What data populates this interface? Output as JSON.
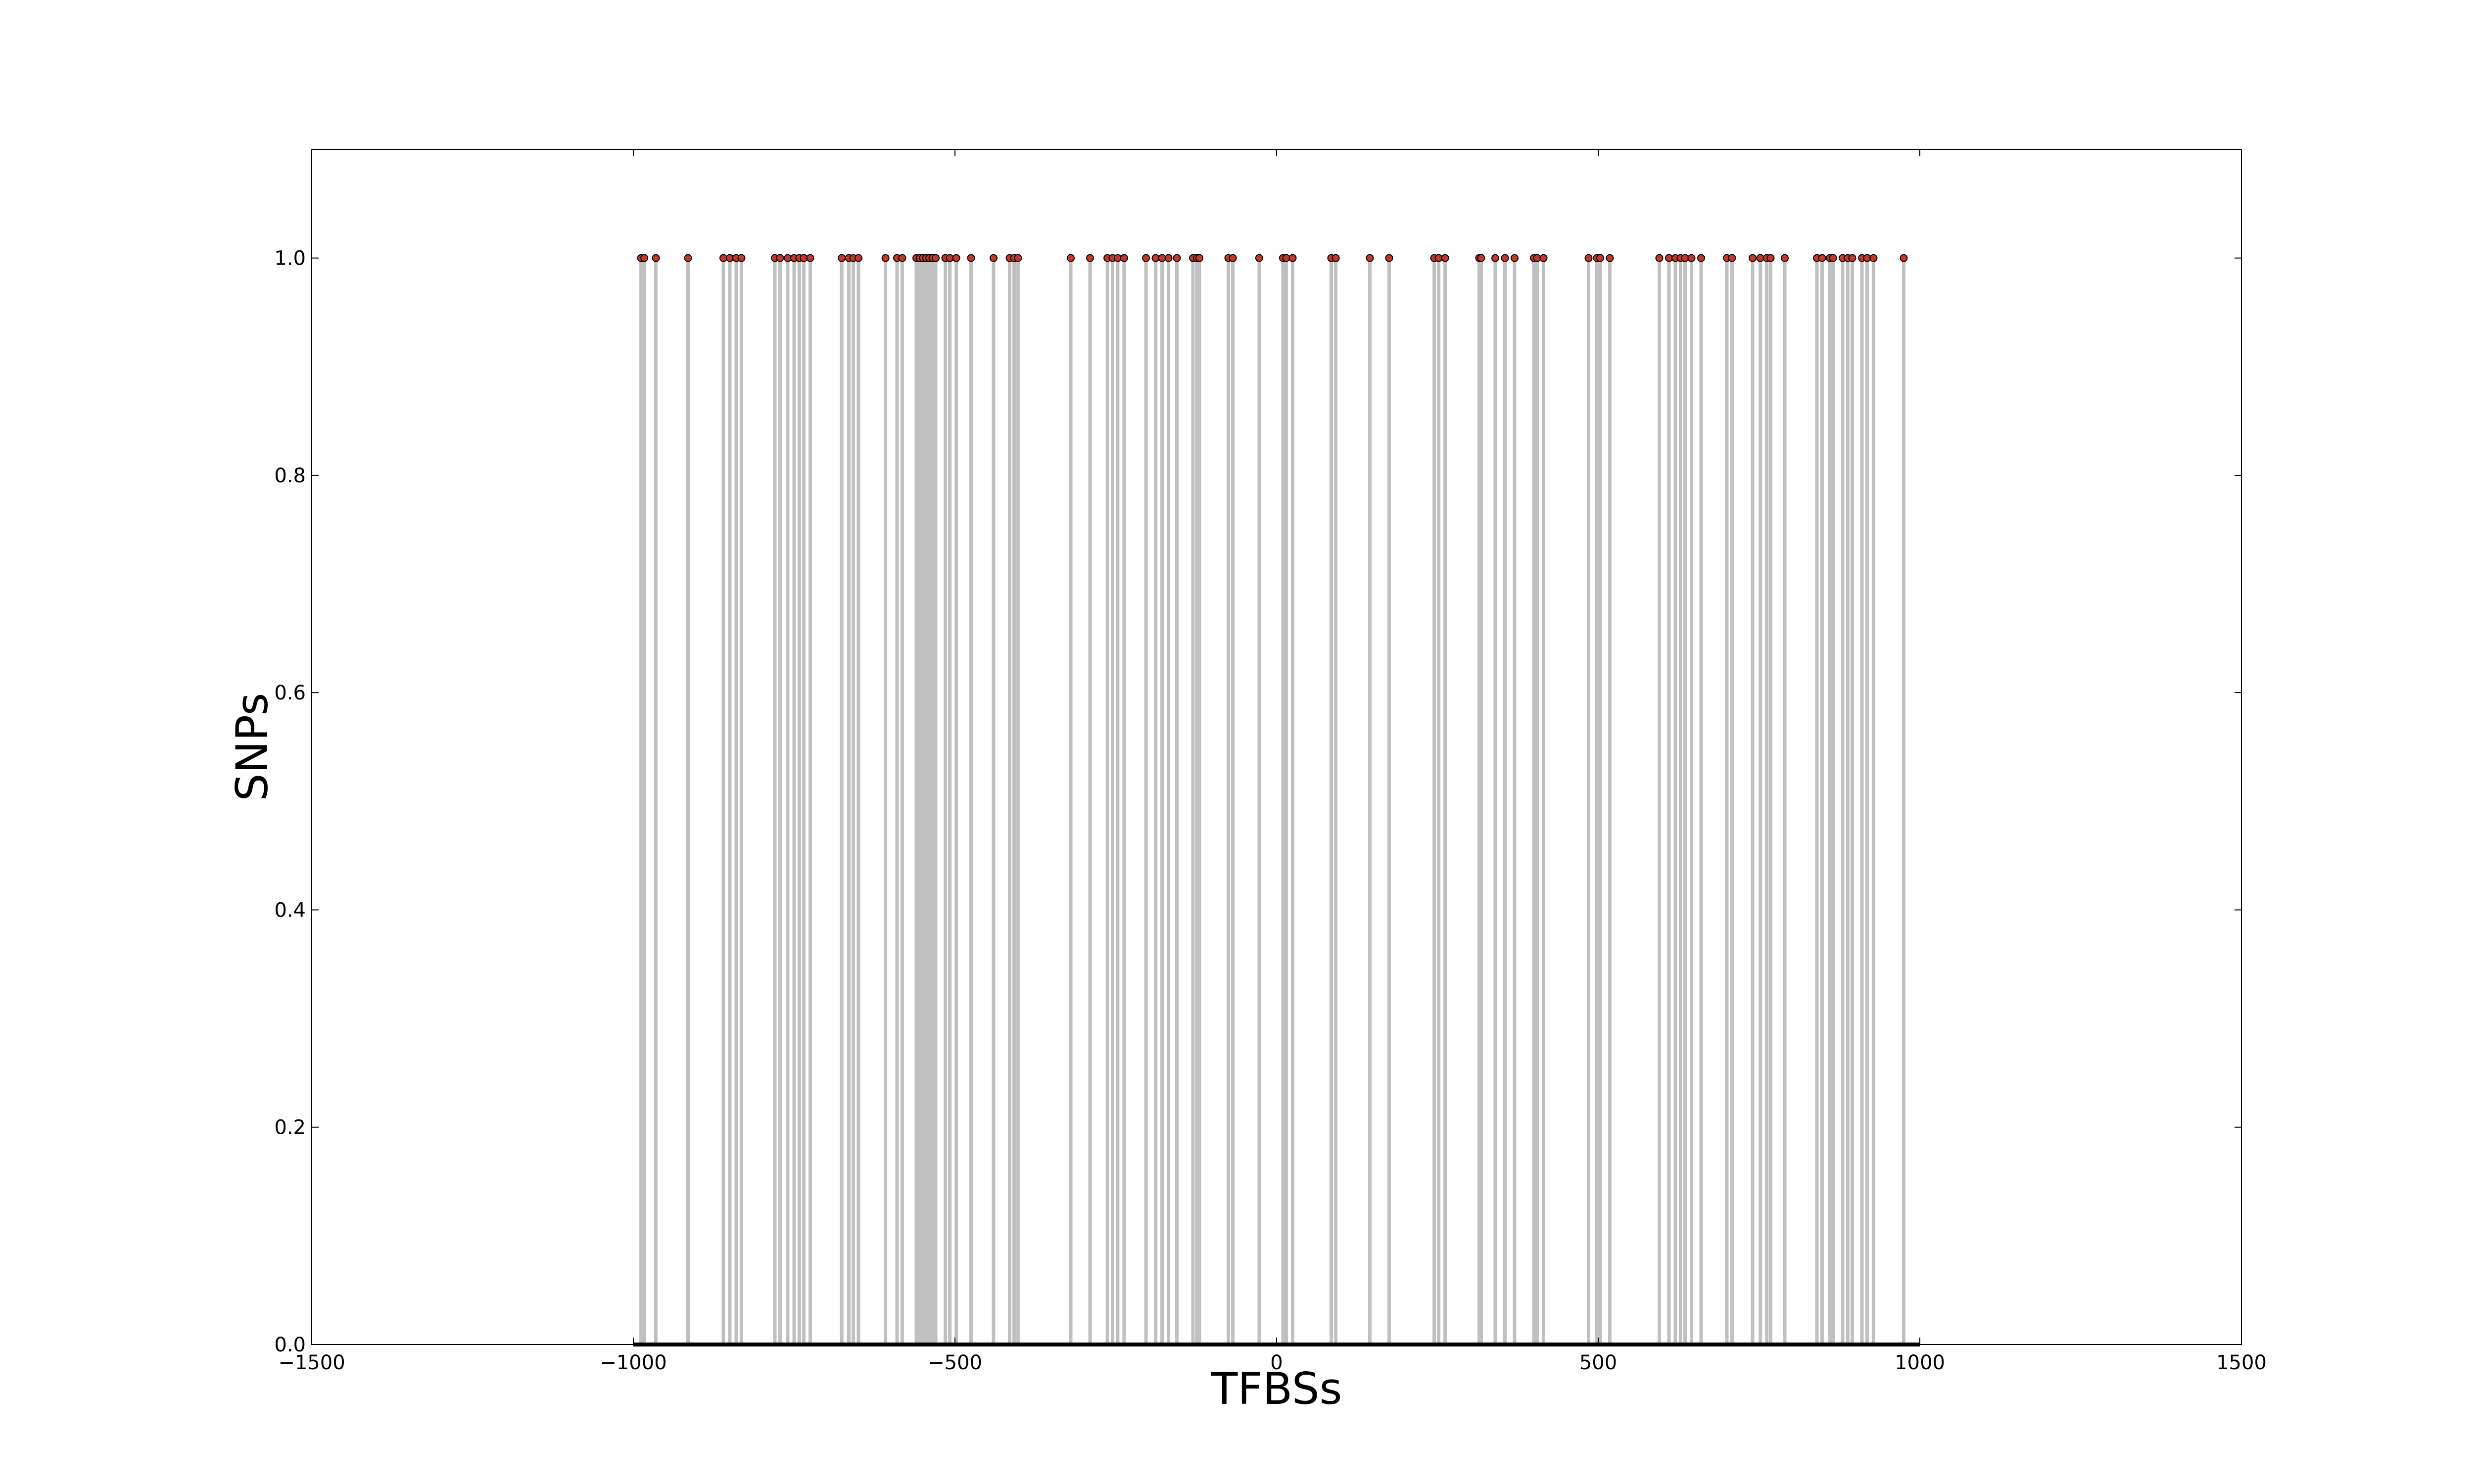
{
  "chart_data": {
    "type": "stem",
    "title": "",
    "xlabel": "TFBSs",
    "ylabel": "SNPs",
    "xlim": [
      -1500,
      1500
    ],
    "ylim": [
      0,
      1.1
    ],
    "xticks": [
      -1500,
      -1000,
      -500,
      0,
      500,
      1000,
      1500
    ],
    "xtick_labels": [
      "−1500",
      "−1000",
      "−500",
      "0",
      "500",
      "1000",
      "1500"
    ],
    "yticks": [
      0.0,
      0.2,
      0.4,
      0.6,
      0.8,
      1.0
    ],
    "ytick_labels": [
      "0.0",
      "0.2",
      "0.4",
      "0.6",
      "0.8",
      "1.0"
    ],
    "grid": false,
    "baseline": {
      "y": 0,
      "x_range": [
        -1000,
        1000
      ]
    },
    "series": [
      {
        "marker_color": "#c0392b",
        "stem_color": "#c0c0c0",
        "y": 1.0,
        "x": [
          -988,
          -983,
          -965,
          -915,
          -860,
          -850,
          -840,
          -832,
          -780,
          -772,
          -760,
          -750,
          -742,
          -735,
          -725,
          -676,
          -665,
          -658,
          -650,
          -608,
          -590,
          -582,
          -560,
          -555,
          -550,
          -545,
          -540,
          -535,
          -530,
          -515,
          -508,
          -498,
          -475,
          -440,
          -415,
          -408,
          -402,
          -320,
          -290,
          -263,
          -255,
          -247,
          -237,
          -203,
          -188,
          -178,
          -168,
          -155,
          -130,
          -124,
          -120,
          -75,
          -68,
          -27,
          10,
          15,
          25,
          85,
          92,
          145,
          175,
          245,
          252,
          262,
          315,
          318,
          340,
          355,
          370,
          400,
          405,
          415,
          485,
          498,
          503,
          518,
          595,
          610,
          620,
          628,
          635,
          645,
          660,
          700,
          708,
          740,
          752,
          762,
          768,
          790,
          840,
          848,
          860,
          865,
          880,
          888,
          895,
          910,
          918,
          928,
          975
        ]
      }
    ]
  }
}
